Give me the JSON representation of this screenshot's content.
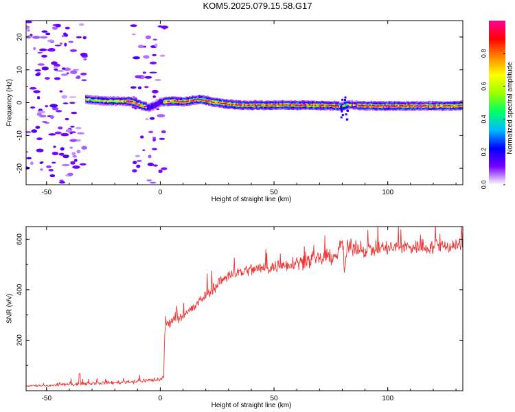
{
  "page": {
    "title": "KOM5.2025.079.15.58.G17"
  },
  "colors": {
    "snr_line": "#ee3333",
    "axis": "#000000"
  },
  "chart_data": [
    {
      "type": "heatmap",
      "title": "KOM5.2025.079.15.58.G17",
      "xlabel": "Height of straight line (km)",
      "ylabel": "Frequency (Hz)",
      "xlim": [
        -59,
        133
      ],
      "ylim": [
        -25,
        25
      ],
      "x_ticks": [
        -50,
        0,
        50,
        100
      ],
      "y_ticks": [
        -20,
        -10,
        0,
        10,
        20
      ],
      "colorbar": {
        "label": "Normalized spectral amplitude",
        "range": [
          0,
          1
        ],
        "ticks": [
          "0.0",
          "0.2",
          "0.4",
          "0.6",
          "0.8"
        ],
        "colormap": [
          "#ffffff",
          "#7700ff",
          "#0000ff",
          "#00bbff",
          "#00ff66",
          "#99ff00",
          "#ffff00",
          "#ff8800",
          "#ff0000",
          "#ff0099"
        ]
      },
      "ridge": {
        "description_points": [
          [
            -33,
            1.0
          ],
          [
            -25,
            0.5
          ],
          [
            -18,
            0.5
          ],
          [
            -13,
            0.3
          ],
          [
            -8,
            -1.0
          ],
          [
            -5,
            -1.5
          ],
          [
            0,
            0.2
          ],
          [
            5,
            0.5
          ],
          [
            10,
            0.3
          ],
          [
            17,
            1.0
          ],
          [
            22,
            0.3
          ],
          [
            28,
            -0.3
          ],
          [
            35,
            -0.8
          ],
          [
            45,
            -0.8
          ],
          [
            55,
            -0.7
          ],
          [
            65,
            -0.8
          ],
          [
            75,
            -0.9
          ],
          [
            80,
            -1.2
          ],
          [
            82,
            -0.5
          ],
          [
            85,
            -0.8
          ],
          [
            92,
            -1.0
          ],
          [
            100,
            -1.0
          ],
          [
            110,
            -1.0
          ],
          [
            120,
            -1.0
          ],
          [
            133,
            -0.9
          ]
        ]
      },
      "grid": false,
      "legend": "colorbar-right"
    },
    {
      "type": "line",
      "xlabel": "Height of straight line (km)",
      "ylabel": "SNR (v/v)",
      "xlim": [
        -59,
        133
      ],
      "ylim": [
        0,
        650
      ],
      "x_ticks": [
        -50,
        0,
        50,
        100
      ],
      "y_ticks": [
        200,
        400,
        600
      ],
      "series": [
        {
          "color": "#ee3333",
          "trend_points": [
            [
              -59,
              20
            ],
            [
              -50,
              20
            ],
            [
              -40,
              25
            ],
            [
              -35,
              28
            ],
            [
              -30,
              30
            ],
            [
              -20,
              32
            ],
            [
              -10,
              38
            ],
            [
              0,
              45
            ],
            [
              1.5,
              50
            ],
            [
              2,
              250
            ],
            [
              3,
              265
            ],
            [
              5,
              280
            ],
            [
              10,
              300
            ],
            [
              15,
              330
            ],
            [
              20,
              380
            ],
            [
              25,
              420
            ],
            [
              30,
              460
            ],
            [
              40,
              480
            ],
            [
              50,
              490
            ],
            [
              60,
              510
            ],
            [
              70,
              520
            ],
            [
              78,
              540
            ],
            [
              80,
              600
            ],
            [
              81,
              470
            ],
            [
              82,
              560
            ],
            [
              85,
              570
            ],
            [
              90,
              560
            ],
            [
              100,
              565
            ],
            [
              110,
              570
            ],
            [
              120,
              570
            ],
            [
              133,
              580
            ]
          ],
          "noise_amplitude": [
            [
              -59,
              8
            ],
            [
              0,
              15
            ],
            [
              2,
              30
            ],
            [
              20,
              40
            ],
            [
              80,
              55
            ],
            [
              133,
              55
            ]
          ]
        }
      ],
      "grid": false
    }
  ]
}
